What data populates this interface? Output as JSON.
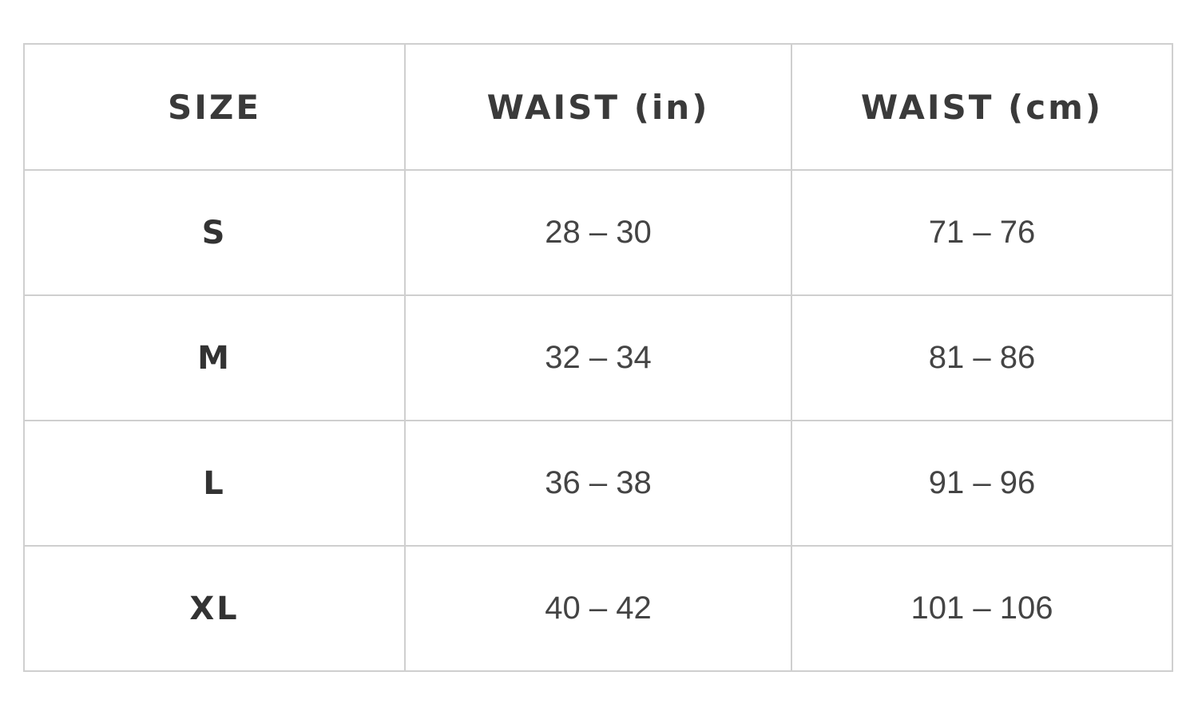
{
  "table": {
    "headers": [
      "SIZE",
      "WAIST (in)",
      "WAIST (cm)"
    ],
    "rows": [
      [
        "S",
        "28 – 30",
        "71 – 76"
      ],
      [
        "M",
        "32 – 34",
        "81 – 86"
      ],
      [
        "L",
        "36 – 38",
        "91 – 96"
      ],
      [
        "XL",
        "40 – 42",
        "101 – 106"
      ]
    ]
  }
}
